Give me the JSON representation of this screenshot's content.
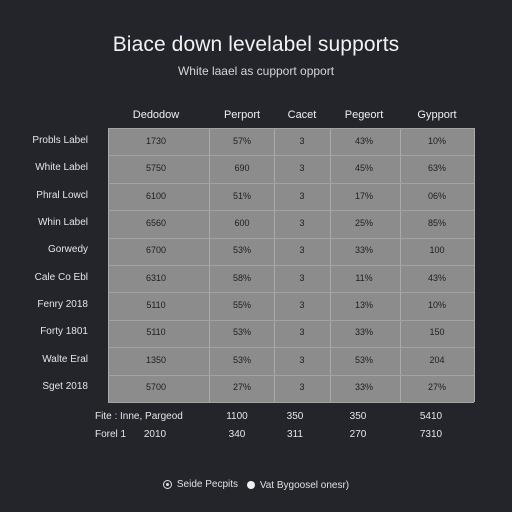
{
  "title": "Biace down levelabel supports",
  "subtitle": "White laael as cupport opport",
  "columns": [
    "Dedodow",
    "Perport",
    "Cacet",
    "Pegeort",
    "Gypport"
  ],
  "rows": [
    {
      "label": "Probls Label",
      "cells": [
        "1730",
        "57%",
        "3",
        "43%",
        "10%"
      ]
    },
    {
      "label": "White Label",
      "cells": [
        "5750",
        "690",
        "3",
        "45%",
        "63%"
      ]
    },
    {
      "label": "Phral Lowcl",
      "cells": [
        "6100",
        "51%",
        "3",
        "17%",
        "06%"
      ]
    },
    {
      "label": "Whin Label",
      "cells": [
        "6560",
        "600",
        "3",
        "25%",
        "85%"
      ]
    },
    {
      "label": "Gorwedy",
      "cells": [
        "6700",
        "53%",
        "3",
        "33%",
        "100"
      ]
    },
    {
      "label": "Cale Co Ebl",
      "cells": [
        "6310",
        "58%",
        "3",
        "11%",
        "43%"
      ]
    },
    {
      "label": "Fenry 2018",
      "cells": [
        "5110",
        "55%",
        "3",
        "13%",
        "10%"
      ]
    },
    {
      "label": "Forty 1801",
      "cells": [
        "5110",
        "53%",
        "3",
        "33%",
        "150"
      ]
    },
    {
      "label": "Walte Eral",
      "cells": [
        "1350",
        "53%",
        "3",
        "53%",
        "204"
      ]
    },
    {
      "label": "Sget 2018",
      "cells": [
        "5700",
        "27%",
        "3",
        "33%",
        "27%"
      ]
    }
  ],
  "footer": [
    {
      "label": "Fite : Inne, Pargeod",
      "values": [
        "1100",
        "350",
        "350",
        "5410"
      ]
    },
    {
      "label": "Forel 1",
      "extra": "2010",
      "values": [
        "340",
        "311",
        "270",
        "7310"
      ]
    }
  ],
  "legend": [
    {
      "icon": "ring-dot-icon",
      "label": "Seide Pecpits"
    },
    {
      "icon": "solid-dot-icon",
      "label": "Vat Bygoosel onesr)"
    }
  ]
}
